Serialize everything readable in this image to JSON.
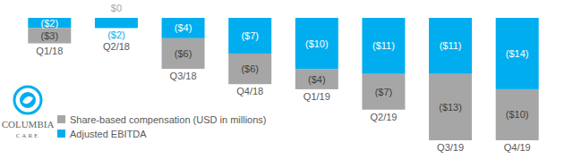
{
  "chart_data": {
    "type": "bar",
    "stacked": true,
    "data_labels": true,
    "tick_labels": "x",
    "grid": false,
    "legend": "bottom-left",
    "categories": [
      "Q1/18",
      "Q2/18",
      "Q3/18",
      "Q4/18",
      "Q1/19",
      "Q2/19",
      "Q3/19",
      "Q4/19"
    ],
    "ylim": [
      -24,
      0
    ],
    "series": [
      {
        "name": "Share-based compensation (USD in millions)",
        "color": "#a6a6a6",
        "values": [
          -3,
          0,
          -6,
          -6,
          -4,
          -7,
          -13,
          -10
        ],
        "value_labels": [
          "($3)",
          "$0",
          "($6)",
          "($6)",
          "($4)",
          "($7)",
          "($13)",
          "($10)"
        ]
      },
      {
        "name": "Adjusted EBITDA",
        "color": "#00aeef",
        "values": [
          -2,
          -2,
          -4,
          -7,
          -10,
          -11,
          -11,
          -14
        ],
        "value_labels": [
          "($2)",
          "($2)",
          "($4)",
          "($7)",
          "($10)",
          "($11)",
          "($11)",
          "($14)"
        ]
      }
    ],
    "annotations": [
      "COLUMBIA",
      "CARE"
    ]
  }
}
